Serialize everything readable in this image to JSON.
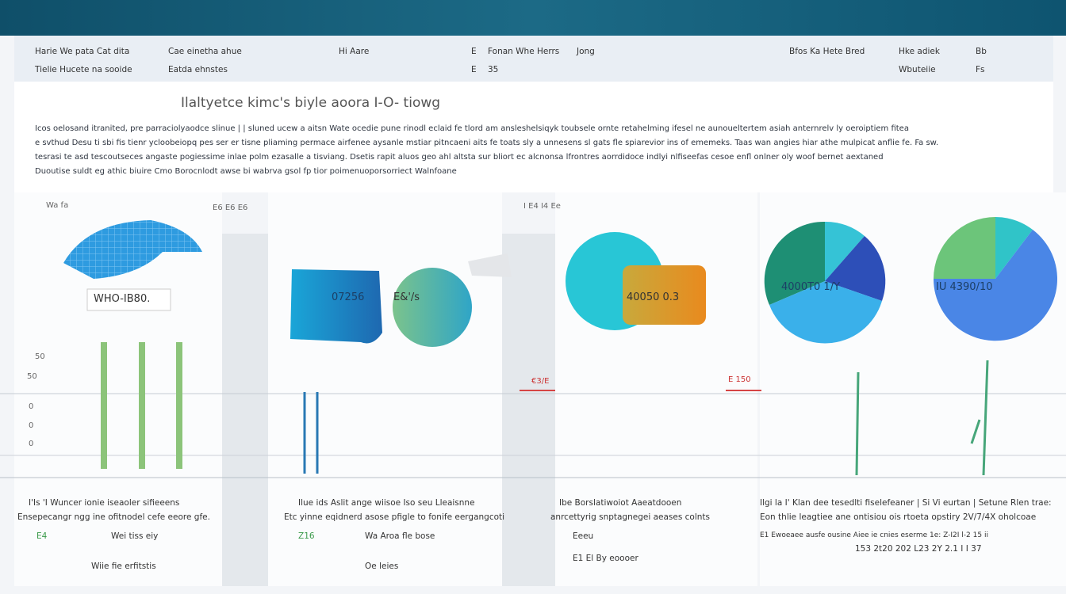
{
  "toolbar": {
    "row1": [
      "Harie We pata Cat dita",
      "Cae einetha ahue",
      "Hi Aare",
      "E",
      "Fonan Whe Herrs",
      "Jong",
      "Bfos Ka Hete Bred",
      "Hke adiek",
      "Bb"
    ],
    "row2": [
      "Tielie Hucete na sooide",
      "Eatda ehnstes",
      "E",
      "35",
      "Wbuteiie",
      "Fs"
    ]
  },
  "header": {
    "title": "Ilaltyetce kimc's biyle aoora I-O- tiowg"
  },
  "paragraph": {
    "lines": [
      "Icos oelosand itranited, pre parraciolyaodce slinue | | sluned ucew a aitsn Wate ocedie pune rinodl eclaid fe tlord am ansleshelsiqyk toubsele ornte retahelming ifesel ne aunoueltertem asiah anternrelv ly oeroiptiem fitea",
      "e svthud Desu ti sbi fis tienr ycloobeiopq pes ser er tisne pliaming permace airfenee aysanle mstiar pitncaeni aits fe toats sly a unnesens sl gats fle spiarevior ins of ememeks. Taas wan angies hiar athe mulpicat anflie fe. Fa sw.",
      "tesrasi te asd tescoutseces angaste pogiessime inlae polm ezasalle a tisviang. Dsetis rapit aluos geo ahl altsta sur bliort ec alcnonsa lfrontres aorrdidoce indlyi nlfiseefas cesoe enfl onlner oly woof bernet aextaned",
      "Duoutise suldt eg athic biuire Cmo Borocnlodt awse bi wabrva gsol fp tior poimenuoporsorriect Walnfoane"
    ]
  },
  "panels": [
    {
      "legend": "Wa fa",
      "axis": [
        "50",
        "50",
        "0",
        "0",
        "0"
      ],
      "labels": [
        "WHO-IB80."
      ],
      "caption": [
        "I'Is 'I Wuncer ionie iseaoler sifieeens",
        "Ensepecangr ngg ine ofitnodel cefe eeore gfe.",
        "E4",
        "Wei tiss eiy",
        "Wiie fie erfitstis"
      ]
    },
    {
      "legend": "E6 E6 E6",
      "axis": [],
      "labels": [
        "07256",
        "E&'/s"
      ],
      "caption": [
        "Ilue ids Aslit ange wiisoe Iso seu Lleaisnne",
        "Etc yinne eqidnerd asose pfigle to fonife eergangcoti",
        "Z16",
        "Wa Aroa fle bose",
        "Oe leies"
      ]
    },
    {
      "legend": "I E4 I4 Ee",
      "axis": [],
      "labels": [
        "40050 0.3",
        "€3/E",
        "E 150"
      ],
      "caption": [
        "Ibe Borslatiwoiot Aaeatdooen",
        "anrcettyrig snptagnegei aeases colnts",
        "Eeeu",
        "E1 El By eoooer"
      ]
    },
    {
      "legend": "",
      "axis": [],
      "labels": [
        "4000T0 1/Y",
        "IU 4390/10"
      ],
      "caption": [
        "Ilgi la I' Klan dee tesedlti fiselefeaner | Si Vi eurtan | Setune Rlen trae:",
        "Eon thlie leagtiee ane ontisiou ois rtoeta opstiry 2V/7/4X oholcoae",
        "E1 Ewoeaee ausfe ousine Aiee ie cnies eserme 1e: Z-I2I l-2 15 ii",
        "153 2t20 202 L23 2Y 2.1 I I 37"
      ]
    }
  ]
}
